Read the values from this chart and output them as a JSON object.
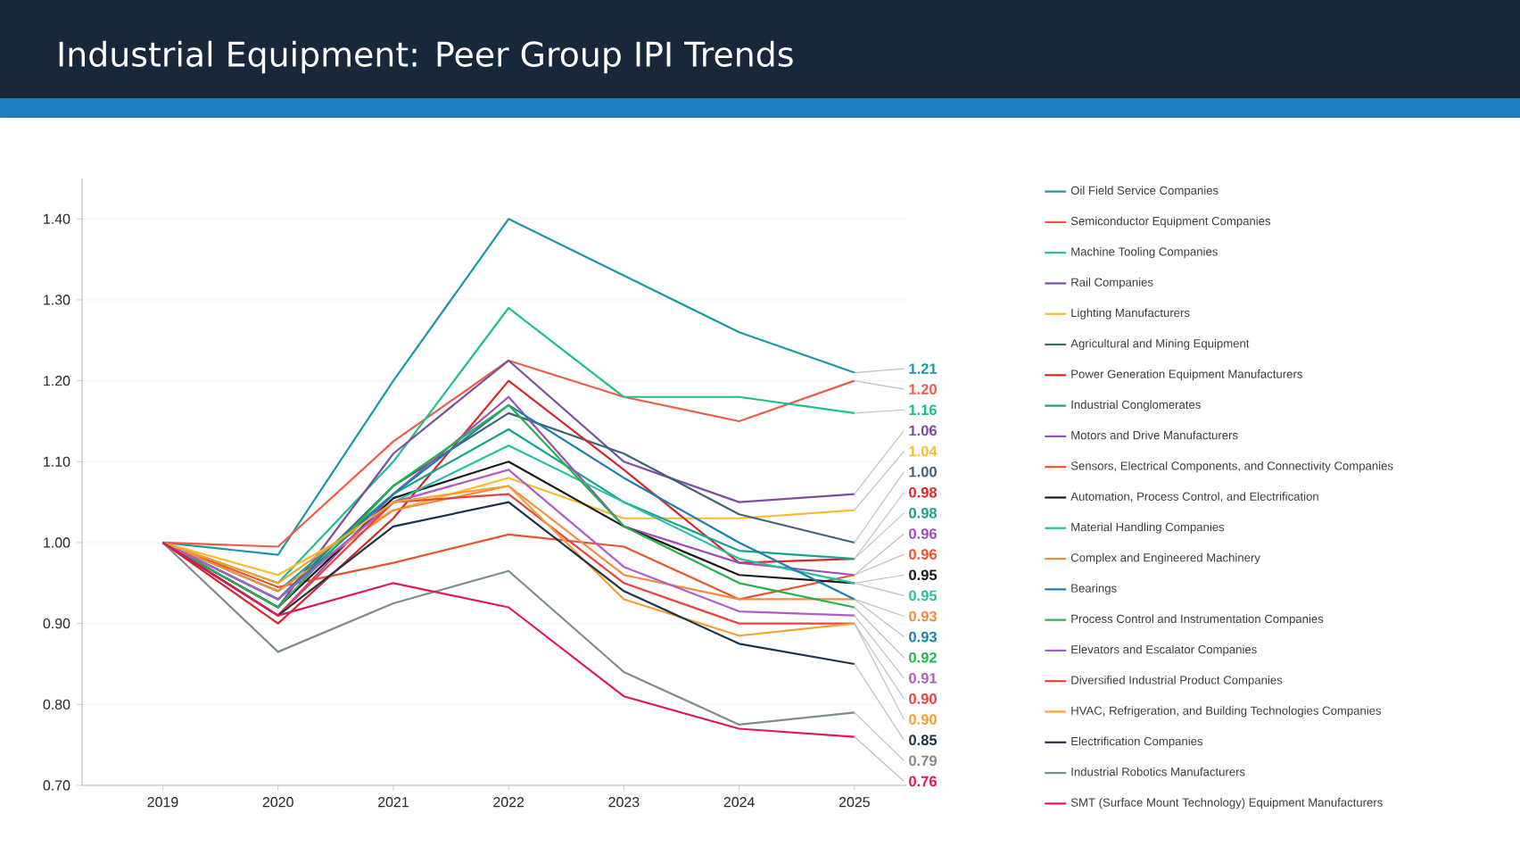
{
  "chart_data": {
    "type": "line",
    "title": "Industrial Equipment: Peer Group IPI Trends",
    "categories": [
      "2019",
      "2020",
      "2021",
      "2022",
      "2023",
      "2024",
      "2025"
    ],
    "ylim": [
      0.7,
      1.45
    ],
    "yticks": [
      {
        "value": 0.7,
        "label": "0.70"
      },
      {
        "value": 0.8,
        "label": "0.80"
      },
      {
        "value": 0.9,
        "label": "0.90"
      },
      {
        "value": 1.0,
        "label": "1.00"
      },
      {
        "value": 1.1,
        "label": "1.10"
      },
      {
        "value": 1.2,
        "label": "1.20"
      },
      {
        "value": 1.3,
        "label": "1.30"
      },
      {
        "value": 1.4,
        "label": "1.40"
      }
    ],
    "grid": "y",
    "legend": "right",
    "series": [
      {
        "name": "Oil Field Service Companies",
        "color": "#1a96a6",
        "values": [
          1.0,
          0.985,
          1.2,
          1.4,
          1.33,
          1.26,
          1.21
        ],
        "value_labels": [
          null,
          null,
          null,
          null,
          null,
          null,
          "1.21"
        ]
      },
      {
        "name": "Semiconductor Equipment Companies",
        "color": "#ef5a4a",
        "values": [
          1.0,
          0.995,
          1.125,
          1.225,
          1.18,
          1.15,
          1.2
        ],
        "value_labels": [
          null,
          null,
          null,
          null,
          null,
          null,
          "1.20"
        ]
      },
      {
        "name": "Machine Tooling Companies",
        "color": "#1abf8a",
        "values": [
          1.0,
          0.95,
          1.1,
          1.29,
          1.18,
          1.18,
          1.16
        ],
        "value_labels": [
          null,
          null,
          null,
          null,
          null,
          null,
          "1.16"
        ]
      },
      {
        "name": "Rail Companies",
        "color": "#7b4fa0",
        "values": [
          1.0,
          0.92,
          1.11,
          1.225,
          1.1,
          1.05,
          1.06
        ],
        "value_labels": [
          null,
          null,
          null,
          null,
          null,
          null,
          "1.06"
        ]
      },
      {
        "name": "Lighting Manufacturers",
        "color": "#fbb92e",
        "values": [
          1.0,
          0.96,
          1.04,
          1.08,
          1.03,
          1.03,
          1.04
        ],
        "value_labels": [
          null,
          null,
          null,
          null,
          null,
          null,
          "1.04"
        ]
      },
      {
        "name": "Agricultural and Mining Equipment",
        "color": "#3f6478",
        "values": [
          1.0,
          0.93,
          1.07,
          1.16,
          1.11,
          1.035,
          1.0
        ],
        "value_labels": [
          null,
          null,
          null,
          null,
          null,
          null,
          "1.00"
        ]
      },
      {
        "name": "Power Generation Equipment Manufacturers",
        "color": "#d7262c",
        "values": [
          1.0,
          0.9,
          1.03,
          1.2,
          1.09,
          0.975,
          0.98
        ],
        "value_labels": [
          null,
          null,
          null,
          null,
          null,
          null,
          "0.98"
        ]
      },
      {
        "name": "Industrial Conglomerates",
        "color": "#17a28a",
        "values": [
          1.0,
          0.94,
          1.06,
          1.14,
          1.05,
          0.99,
          0.98
        ],
        "value_labels": [
          null,
          null,
          null,
          null,
          null,
          null,
          "0.98"
        ]
      },
      {
        "name": "Motors and Drive Manufacturers",
        "color": "#a04cb8",
        "values": [
          1.0,
          0.91,
          1.06,
          1.18,
          1.02,
          0.975,
          0.96
        ],
        "value_labels": [
          null,
          null,
          null,
          null,
          null,
          null,
          "0.96"
        ]
      },
      {
        "name": "Sensors, Electrical Components, and Connectivity Companies",
        "color": "#e8542c",
        "values": [
          1.0,
          0.945,
          0.975,
          1.01,
          0.995,
          0.93,
          0.96
        ],
        "value_labels": [
          null,
          null,
          null,
          null,
          null,
          null,
          "0.96"
        ]
      },
      {
        "name": "Automation, Process Control, and Electrification",
        "color": "#1a1a1a",
        "values": [
          1.0,
          0.92,
          1.055,
          1.1,
          1.02,
          0.96,
          0.95
        ],
        "value_labels": [
          null,
          null,
          null,
          null,
          null,
          null,
          "0.95"
        ]
      },
      {
        "name": "Material Handling Companies",
        "color": "#25c0a0",
        "values": [
          1.0,
          0.93,
          1.05,
          1.12,
          1.05,
          0.98,
          0.95
        ],
        "value_labels": [
          null,
          null,
          null,
          null,
          null,
          null,
          "0.95"
        ]
      },
      {
        "name": "Complex and Engineered Machinery",
        "color": "#f58a3c",
        "values": [
          1.0,
          0.94,
          1.04,
          1.07,
          0.96,
          0.93,
          0.93
        ],
        "value_labels": [
          null,
          null,
          null,
          null,
          null,
          null,
          "0.93"
        ]
      },
      {
        "name": "Bearings",
        "color": "#1a7fb0",
        "values": [
          1.0,
          0.93,
          1.06,
          1.17,
          1.08,
          1.0,
          0.93
        ],
        "value_labels": [
          null,
          null,
          null,
          null,
          null,
          null,
          "0.93"
        ]
      },
      {
        "name": "Process Control and Instrumentation Companies",
        "color": "#22b34a",
        "values": [
          1.0,
          0.92,
          1.07,
          1.17,
          1.02,
          0.95,
          0.92
        ],
        "value_labels": [
          null,
          null,
          null,
          null,
          null,
          null,
          "0.92"
        ]
      },
      {
        "name": "Elevators and Escalator Companies",
        "color": "#b05cc8",
        "values": [
          1.0,
          0.93,
          1.05,
          1.09,
          0.97,
          0.915,
          0.91
        ],
        "value_labels": [
          null,
          null,
          null,
          null,
          null,
          null,
          "0.91"
        ]
      },
      {
        "name": "Diversified Industrial Product Companies",
        "color": "#ee4040",
        "values": [
          1.0,
          0.91,
          1.05,
          1.06,
          0.95,
          0.9,
          0.9
        ],
        "value_labels": [
          null,
          null,
          null,
          null,
          null,
          null,
          "0.90"
        ]
      },
      {
        "name": "HVAC, Refrigeration, and Building Technologies Companies",
        "color": "#f7a030",
        "values": [
          1.0,
          0.95,
          1.05,
          1.07,
          0.93,
          0.885,
          0.9
        ],
        "value_labels": [
          null,
          null,
          null,
          null,
          null,
          null,
          "0.90"
        ]
      },
      {
        "name": "Electrification Companies",
        "color": "#1d3448",
        "values": [
          1.0,
          0.91,
          1.02,
          1.05,
          0.94,
          0.875,
          0.85
        ],
        "value_labels": [
          null,
          null,
          null,
          null,
          null,
          null,
          "0.85"
        ]
      },
      {
        "name": "Industrial Robotics Manufacturers",
        "color": "#7f8c8d",
        "values": [
          1.0,
          0.865,
          0.925,
          0.965,
          0.84,
          0.775,
          0.79
        ],
        "value_labels": [
          null,
          null,
          null,
          null,
          null,
          null,
          "0.79"
        ]
      },
      {
        "name": "SMT (Surface Mount Technology) Equipment Manufacturers",
        "color": "#e0185a",
        "values": [
          1.0,
          0.91,
          0.95,
          0.92,
          0.81,
          0.77,
          0.76
        ],
        "value_labels": [
          null,
          null,
          null,
          null,
          null,
          null,
          "0.76"
        ]
      }
    ]
  }
}
